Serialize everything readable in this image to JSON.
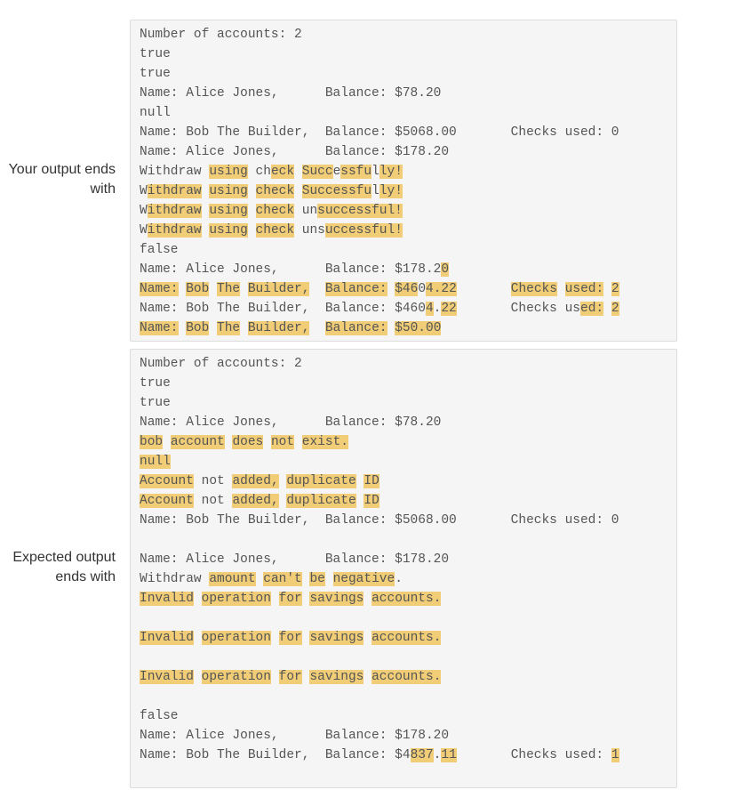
{
  "your_output": {
    "label": "Your output ends with",
    "lines": [
      [
        [
          "Number of accounts: 2",
          false
        ]
      ],
      [
        [
          "true",
          false
        ]
      ],
      [
        [
          "true",
          false
        ]
      ],
      [
        [
          "Name: Alice Jones,      Balance: $78.20",
          false
        ]
      ],
      [
        [
          "null",
          false
        ]
      ],
      [
        [
          "Name: Bob The Builder,  Balance: $5068.00       Checks used: 0",
          false
        ]
      ],
      [
        [
          "Name: Alice Jones,      Balance: $178.20",
          false
        ]
      ],
      [
        [
          "Withdraw ",
          false
        ],
        [
          "using",
          true
        ],
        [
          " ch",
          false
        ],
        [
          "eck",
          true
        ],
        [
          " ",
          false
        ],
        [
          "Succ",
          true
        ],
        [
          "e",
          false
        ],
        [
          "ssfu",
          true
        ],
        [
          "l",
          false
        ],
        [
          "ly!",
          true
        ]
      ],
      [
        [
          "W",
          false
        ],
        [
          "ithdraw",
          true
        ],
        [
          " ",
          false
        ],
        [
          "using",
          true
        ],
        [
          " ",
          false
        ],
        [
          "check",
          true
        ],
        [
          " ",
          false
        ],
        [
          "Successfu",
          true
        ],
        [
          "l",
          false
        ],
        [
          "ly!",
          true
        ]
      ],
      [
        [
          "W",
          false
        ],
        [
          "ithdraw",
          true
        ],
        [
          " ",
          false
        ],
        [
          "using",
          true
        ],
        [
          " ",
          false
        ],
        [
          "check",
          true
        ],
        [
          " un",
          false
        ],
        [
          "successful!",
          true
        ]
      ],
      [
        [
          "W",
          false
        ],
        [
          "ithdraw",
          true
        ],
        [
          " ",
          false
        ],
        [
          "using",
          true
        ],
        [
          " ",
          false
        ],
        [
          "check",
          true
        ],
        [
          " uns",
          false
        ],
        [
          "uccessful!",
          true
        ]
      ],
      [
        [
          "false",
          false
        ]
      ],
      [
        [
          "Name: Alice Jones,      Balance: $178.2",
          false
        ],
        [
          "0",
          true
        ]
      ],
      [
        [
          "Name:",
          true
        ],
        [
          " ",
          false
        ],
        [
          "Bob",
          true
        ],
        [
          " ",
          false
        ],
        [
          "The",
          true
        ],
        [
          " ",
          false
        ],
        [
          "Builder,",
          true
        ],
        [
          "  ",
          false
        ],
        [
          "Balance:",
          true
        ],
        [
          " ",
          false
        ],
        [
          "$46",
          true
        ],
        [
          "0",
          false
        ],
        [
          "4.22",
          true
        ],
        [
          "       ",
          false
        ],
        [
          "Checks",
          true
        ],
        [
          " ",
          false
        ],
        [
          "used:",
          true
        ],
        [
          " ",
          false
        ],
        [
          "2",
          true
        ]
      ],
      [
        [
          "Name: Bob The Builder,  Balance: $460",
          false
        ],
        [
          "4",
          true
        ],
        [
          ".",
          false
        ],
        [
          "22",
          true
        ],
        [
          "       Checks us",
          false
        ],
        [
          "ed:",
          true
        ],
        [
          " ",
          false
        ],
        [
          "2",
          true
        ]
      ],
      [
        [
          "Name:",
          true
        ],
        [
          " ",
          false
        ],
        [
          "Bob",
          true
        ],
        [
          " ",
          false
        ],
        [
          "The",
          true
        ],
        [
          " ",
          false
        ],
        [
          "Builder,",
          true
        ],
        [
          "  ",
          false
        ],
        [
          "Balance:",
          true
        ],
        [
          " ",
          false
        ],
        [
          "$50.00",
          true
        ]
      ]
    ]
  },
  "expected_output": {
    "label": "Expected output ends with",
    "lines": [
      [
        [
          "Number of accounts: 2",
          false
        ]
      ],
      [
        [
          "true",
          false
        ]
      ],
      [
        [
          "true",
          false
        ]
      ],
      [
        [
          "Name: Alice Jones,      Balance: $78.20",
          false
        ]
      ],
      [
        [
          "bob",
          true
        ],
        [
          " ",
          false
        ],
        [
          "account",
          true
        ],
        [
          " ",
          false
        ],
        [
          "does",
          true
        ],
        [
          " ",
          false
        ],
        [
          "not",
          true
        ],
        [
          " ",
          false
        ],
        [
          "exist.",
          true
        ]
      ],
      [
        [
          "null",
          true
        ]
      ],
      [
        [
          "Account",
          true
        ],
        [
          " not ",
          false
        ],
        [
          "added,",
          true
        ],
        [
          " ",
          false
        ],
        [
          "duplicate",
          true
        ],
        [
          " ",
          false
        ],
        [
          "ID",
          true
        ]
      ],
      [
        [
          "Account",
          true
        ],
        [
          " not ",
          false
        ],
        [
          "added,",
          true
        ],
        [
          " ",
          false
        ],
        [
          "duplicate",
          true
        ],
        [
          " ",
          false
        ],
        [
          "ID",
          true
        ]
      ],
      [
        [
          "Name: Bob The Builder,  Balance: $5068.00       Checks used: 0",
          false
        ]
      ],
      [
        [
          "",
          false
        ]
      ],
      [
        [
          "Name: Alice Jones,      Balance: $178.20",
          false
        ]
      ],
      [
        [
          "Withdraw ",
          false
        ],
        [
          "amount",
          true
        ],
        [
          " ",
          false
        ],
        [
          "can't",
          true
        ],
        [
          " ",
          false
        ],
        [
          "be",
          true
        ],
        [
          " ",
          false
        ],
        [
          "negative",
          true
        ],
        [
          ".",
          false
        ]
      ],
      [
        [
          "Invalid",
          true
        ],
        [
          " ",
          false
        ],
        [
          "operation",
          true
        ],
        [
          " ",
          false
        ],
        [
          "for",
          true
        ],
        [
          " ",
          false
        ],
        [
          "savings",
          true
        ],
        [
          " ",
          false
        ],
        [
          "accounts.",
          true
        ]
      ],
      [
        [
          "",
          false
        ]
      ],
      [
        [
          "Invalid",
          true
        ],
        [
          " ",
          false
        ],
        [
          "operation",
          true
        ],
        [
          " ",
          false
        ],
        [
          "for",
          true
        ],
        [
          " ",
          false
        ],
        [
          "savings",
          true
        ],
        [
          " ",
          false
        ],
        [
          "accounts.",
          true
        ]
      ],
      [
        [
          "",
          false
        ]
      ],
      [
        [
          "Invalid",
          true
        ],
        [
          " ",
          false
        ],
        [
          "operation",
          true
        ],
        [
          " ",
          false
        ],
        [
          "for",
          true
        ],
        [
          " ",
          false
        ],
        [
          "savings",
          true
        ],
        [
          " ",
          false
        ],
        [
          "accounts.",
          true
        ]
      ],
      [
        [
          "",
          false
        ]
      ],
      [
        [
          "false",
          false
        ]
      ],
      [
        [
          "Name: Alice Jones,      Balance: $178.20",
          false
        ]
      ],
      [
        [
          "Name: Bob The Builder,  Balance: $4",
          false
        ],
        [
          "837",
          true
        ],
        [
          ".",
          false
        ],
        [
          "11",
          true
        ],
        [
          "       Checks used: ",
          false
        ],
        [
          "1",
          true
        ]
      ]
    ]
  }
}
